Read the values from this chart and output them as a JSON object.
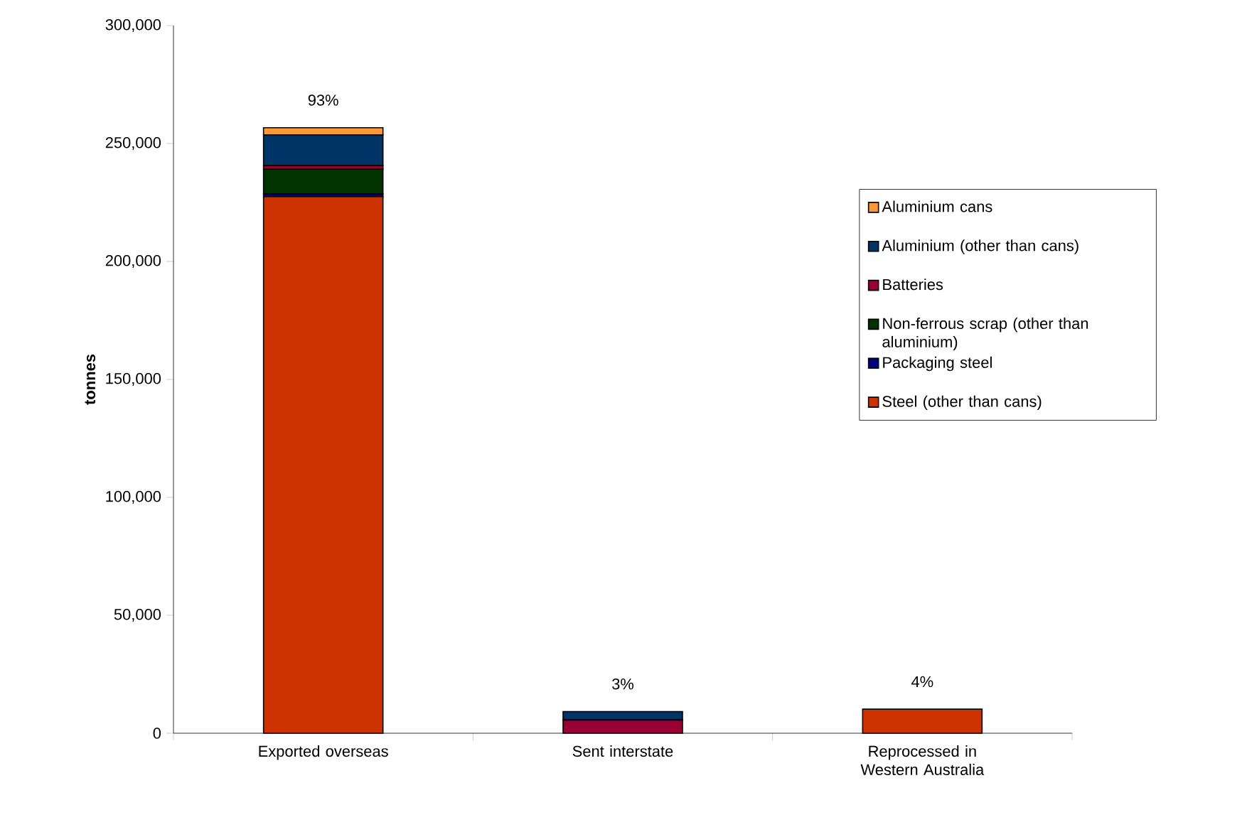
{
  "chart_data": {
    "type": "bar",
    "stacked": true,
    "ylabel": "tonnes",
    "categories": [
      "Exported overseas",
      "Sent interstate",
      "Reprocessed in Western Australia"
    ],
    "series": [
      {
        "name": "Steel (other than cans)",
        "color": "#cc3300",
        "values": [
          227500,
          null,
          10200
        ]
      },
      {
        "name": "Packaging steel",
        "color": "#000080",
        "values": [
          1200,
          null,
          null
        ]
      },
      {
        "name": "Non-ferrous scrap (other than aluminium)",
        "color": "#003300",
        "values": [
          10500,
          null,
          null
        ]
      },
      {
        "name": "Batteries",
        "color": "#990033",
        "values": [
          1500,
          5600,
          null
        ]
      },
      {
        "name": "Aluminium (other than cans)",
        "color": "#003366",
        "values": [
          13000,
          3600,
          null
        ]
      },
      {
        "name": "Aluminium cans",
        "color": "#ff9933",
        "values": [
          3000,
          null,
          null
        ]
      }
    ],
    "ylim": [
      0,
      300000
    ],
    "yticks": [
      {
        "value": 0,
        "label": "0"
      },
      {
        "value": 50000,
        "label": "50,000"
      },
      {
        "value": 100000,
        "label": "100,000"
      },
      {
        "value": 150000,
        "label": "150,000"
      },
      {
        "value": 200000,
        "label": "200,000"
      },
      {
        "value": 250000,
        "label": "250,000"
      },
      {
        "value": 300000,
        "label": "300,000"
      }
    ],
    "annotations": [
      {
        "text": "93%",
        "x": "Exported overseas",
        "y": 256700
      },
      {
        "text": "3%",
        "x": "Sent interstate",
        "y": 9200
      },
      {
        "text": "4%",
        "x": "Reprocessed in Western Australia",
        "y": 10200
      }
    ],
    "legend": "right",
    "grid": false
  }
}
